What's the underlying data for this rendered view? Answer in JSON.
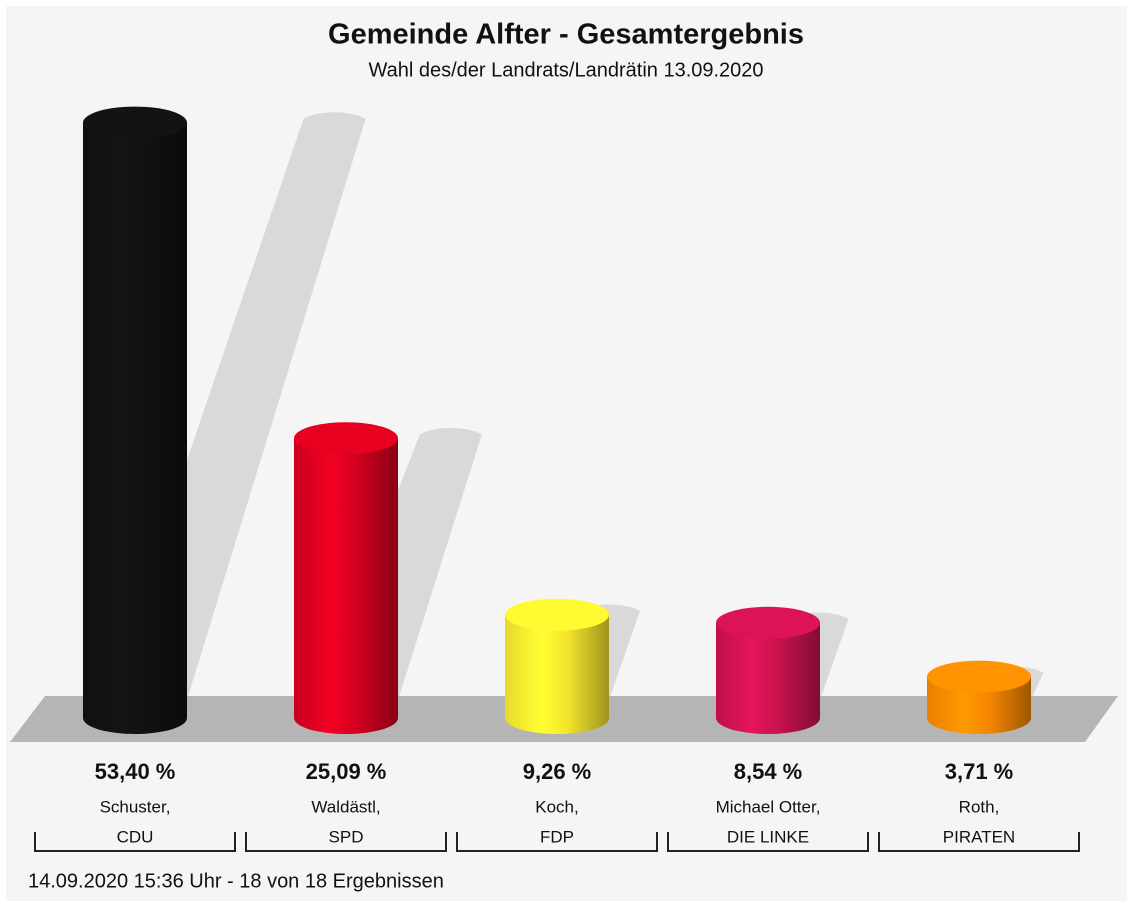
{
  "chart_data": {
    "type": "bar",
    "title": "Gemeinde Alfter - Gesamtergebnis",
    "subtitle": "Wahl des/der Landrats/Landrätin 13.09.2020",
    "categories": [
      [
        "Schuster,",
        "CDU"
      ],
      [
        "Waldästl,",
        "SPD"
      ],
      [
        "Koch,",
        "FDP"
      ],
      [
        "Michael Otter,",
        "DIE LINKE"
      ],
      [
        "Roth,",
        "PIRATEN"
      ]
    ],
    "values": [
      53.4,
      25.09,
      9.26,
      8.54,
      3.71
    ],
    "value_labels": [
      "53,40 %",
      "25,09 %",
      "9,26 %",
      "8,54 %",
      "3,71 %"
    ],
    "colors": [
      "#111111",
      "#d3001e",
      "#f4e42c",
      "#c8124d",
      "#f58600"
    ],
    "footer": "14.09.2020 15:36 Uhr - 18 von 18 Ergebnissen"
  }
}
